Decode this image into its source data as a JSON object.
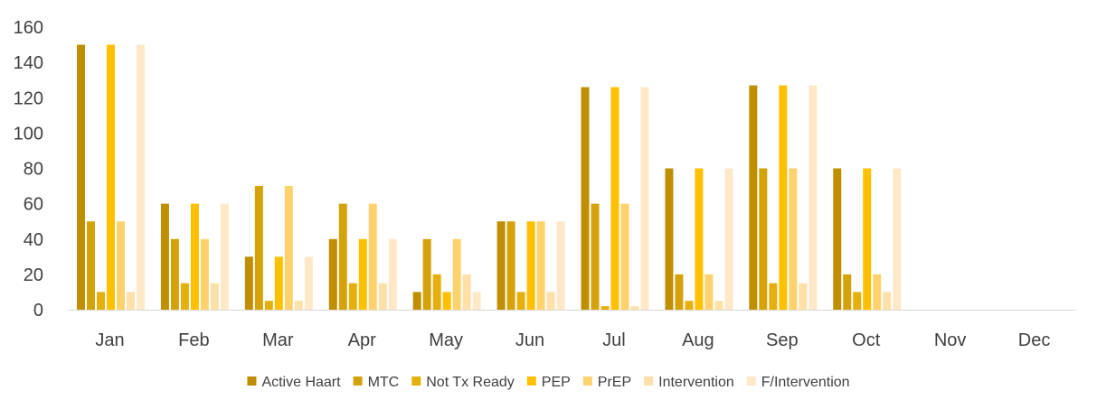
{
  "chart_data": {
    "type": "bar",
    "title": "",
    "xlabel": "",
    "ylabel": "",
    "ylim": [
      0,
      160
    ],
    "yticks": [
      0,
      20,
      40,
      60,
      80,
      100,
      120,
      140,
      160
    ],
    "grid": false,
    "legend_position": "bottom",
    "categories": [
      "Jan",
      "Feb",
      "Mar",
      "Apr",
      "May",
      "Jun",
      "Jul",
      "Aug",
      "Sep",
      "Oct",
      "Nov",
      "Dec"
    ],
    "series": [
      {
        "name": "Active Haart",
        "color": "#BF8F00",
        "values": [
          150,
          60,
          30,
          40,
          10,
          50,
          126,
          80,
          127,
          80,
          0,
          0
        ]
      },
      {
        "name": "MTC",
        "color": "#D4A20A",
        "values": [
          50,
          40,
          70,
          60,
          40,
          50,
          60,
          20,
          80,
          20,
          0,
          0
        ]
      },
      {
        "name": "Not Tx Ready",
        "color": "#E6B00C",
        "values": [
          10,
          15,
          5,
          15,
          20,
          10,
          2,
          5,
          15,
          10,
          0,
          0
        ]
      },
      {
        "name": "PEP",
        "color": "#FFC000",
        "values": [
          150,
          60,
          30,
          40,
          10,
          50,
          126,
          80,
          127,
          80,
          0,
          0
        ]
      },
      {
        "name": "PrEP",
        "color": "#FFD26E",
        "values": [
          50,
          40,
          70,
          60,
          40,
          50,
          60,
          20,
          80,
          20,
          0,
          0
        ]
      },
      {
        "name": "Intervention",
        "color": "#FFE0A8",
        "values": [
          10,
          15,
          5,
          15,
          20,
          10,
          2,
          5,
          15,
          10,
          0,
          0
        ]
      },
      {
        "name": "F/Intervention",
        "color": "#FFE8C8",
        "values": [
          150,
          60,
          30,
          40,
          10,
          50,
          126,
          80,
          127,
          80,
          0,
          0
        ]
      }
    ]
  }
}
